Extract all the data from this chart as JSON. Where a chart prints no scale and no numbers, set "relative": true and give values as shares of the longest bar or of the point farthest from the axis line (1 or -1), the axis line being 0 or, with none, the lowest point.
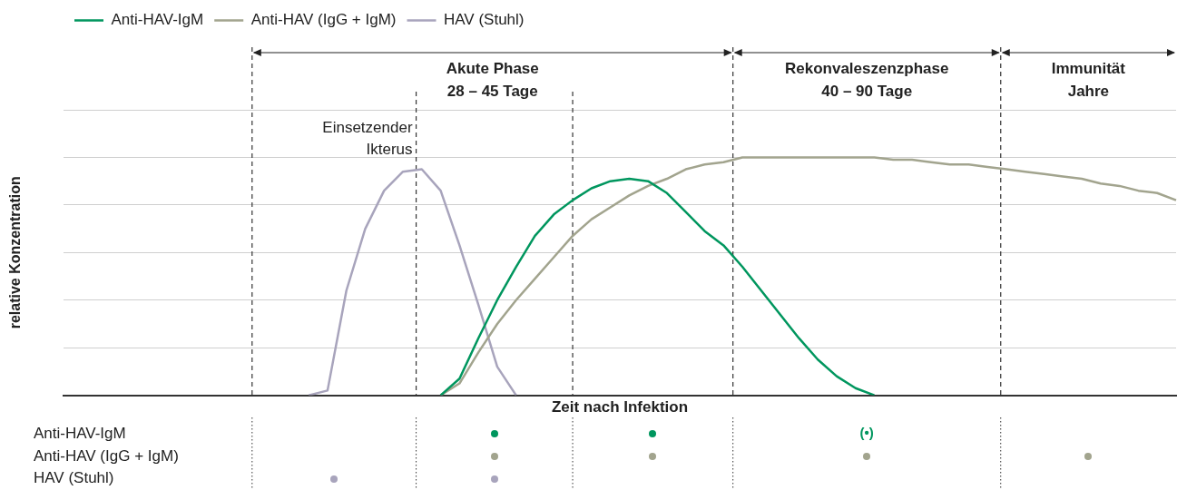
{
  "chart_data": [
    {
      "type": "line",
      "relative": true,
      "xlabel": "Zeit nach Infektion",
      "ylabel": "relative Konzentration",
      "legend": "top left",
      "grid": "y",
      "marker": "none",
      "categories": [
        null,
        null,
        null,
        null,
        null,
        null,
        null,
        null,
        null,
        null,
        null,
        null,
        null,
        null,
        null,
        null,
        null,
        null,
        null,
        null,
        null,
        null,
        null,
        null,
        null,
        null,
        null,
        null,
        null,
        null,
        null,
        null,
        null,
        null,
        null,
        null,
        null,
        null,
        null,
        null,
        null,
        null,
        null,
        null,
        null,
        null,
        null,
        null,
        null,
        null,
        null,
        null,
        null,
        null,
        null,
        null,
        null,
        null,
        null,
        null
      ],
      "series": [
        {
          "name": "Anti-HAV-IgM",
          "color": "#00965e",
          "values": [
            null,
            null,
            null,
            null,
            null,
            null,
            null,
            null,
            null,
            null,
            null,
            null,
            null,
            null,
            null,
            null,
            null,
            null,
            null,
            null,
            0,
            0.07,
            0.24,
            0.4,
            0.54,
            0.67,
            0.76,
            0.82,
            0.87,
            0.9,
            0.91,
            0.9,
            0.85,
            0.77,
            0.69,
            0.63,
            0.54,
            0.44,
            0.34,
            0.24,
            0.15,
            0.08,
            0.03,
            0,
            null,
            null,
            null,
            null,
            null,
            null,
            null,
            null,
            null,
            null,
            null,
            null,
            null,
            null,
            null,
            null
          ]
        },
        {
          "name": "Anti-HAV (IgG + IgM)",
          "color": "#a2a48e",
          "values": [
            null,
            null,
            null,
            null,
            null,
            null,
            null,
            null,
            null,
            null,
            null,
            null,
            null,
            null,
            null,
            null,
            null,
            null,
            null,
            null,
            0,
            0.05,
            0.18,
            0.3,
            0.4,
            0.49,
            0.58,
            0.67,
            0.74,
            0.79,
            0.84,
            0.88,
            0.91,
            0.95,
            0.97,
            0.98,
            1,
            1,
            1,
            1,
            1,
            1,
            1,
            1,
            0.99,
            0.99,
            0.98,
            0.97,
            0.97,
            0.96,
            0.95,
            0.94,
            0.93,
            0.92,
            0.91,
            0.89,
            0.88,
            0.86,
            0.85,
            0.82
          ]
        },
        {
          "name": "HAV (Stuhl)",
          "color": "#a8a4bc",
          "values": [
            null,
            null,
            null,
            null,
            null,
            null,
            null,
            null,
            null,
            null,
            null,
            null,
            null,
            0,
            0.02,
            0.44,
            0.7,
            0.86,
            0.94,
            0.95,
            0.86,
            0.63,
            0.38,
            0.12,
            0,
            null,
            null,
            null,
            null,
            null,
            null,
            null,
            null,
            null,
            null,
            null,
            null,
            null,
            null,
            null,
            null,
            null,
            null,
            null,
            null,
            null,
            null,
            null,
            null,
            null,
            null,
            null,
            null,
            null,
            null,
            null,
            null,
            null,
            null,
            null
          ]
        }
      ],
      "annotations": [
        "Einsetzender Ikterus",
        "Akute Phase\n28 – 45 Tage",
        "Rekonvaleszenzphase\n40 – 90 Tage",
        "Immunität\nJahre"
      ]
    },
    {
      "type": "other",
      "annotations": [
        "Anti-HAV-IgM",
        "Anti-HAV (IgG + IgM)",
        "HAV (Stuhl)",
        "(•)"
      ]
    }
  ]
}
